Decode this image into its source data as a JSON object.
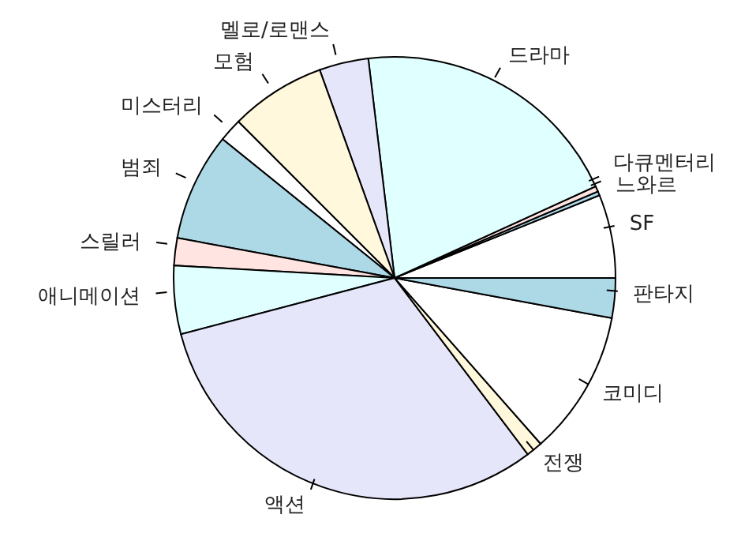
{
  "chart_data": {
    "type": "pie",
    "categories": [
      "SF",
      "느와르",
      "다큐멘터리",
      "드라마",
      "멜로/로맨스",
      "모험",
      "미스터리",
      "범죄",
      "스릴러",
      "애니메이션",
      "액션",
      "전쟁",
      "코미디",
      "판타지"
    ],
    "values": [
      6.1,
      0.3,
      0.4,
      20.1,
      3.6,
      7,
      1.7,
      7.9,
      2,
      5,
      31.2,
      1.2,
      10.6,
      2.9
    ],
    "colors": [
      "#ffffff",
      "#add8e6",
      "#ffe4e1",
      "#e0ffff",
      "#e6e6fa",
      "#fff8dc",
      "#ffffff",
      "#add8e6",
      "#ffe4e1",
      "#e0ffff",
      "#e6e6fa",
      "#fff8dc",
      "#ffffff",
      "#add8e6"
    ]
  }
}
